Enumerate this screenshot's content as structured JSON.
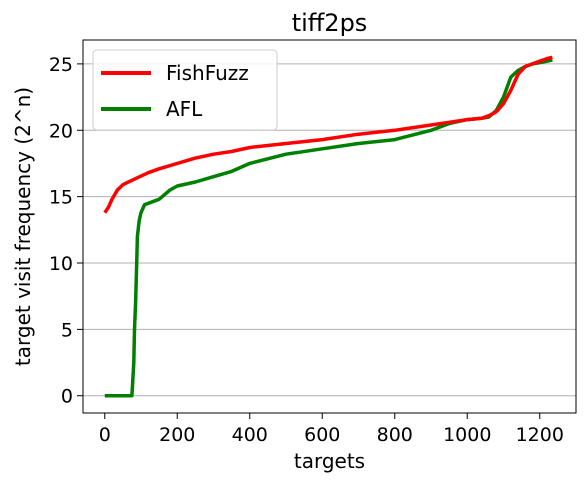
{
  "chart_data": {
    "type": "line",
    "title": "tiff2ps",
    "xlabel": "targets",
    "ylabel": "target visit frequency (2^n)",
    "xlim": [
      -60,
      1300
    ],
    "ylim": [
      -1.3,
      26.8
    ],
    "xticks": [
      0,
      200,
      400,
      600,
      800,
      1000,
      1200
    ],
    "yticks": [
      0,
      5,
      10,
      15,
      20,
      25
    ],
    "grid": "horizontal",
    "legend_position": "top-left",
    "series": [
      {
        "name": "FishFuzz",
        "color": "#ff0000",
        "x": [
          0,
          10,
          20,
          35,
          50,
          80,
          120,
          150,
          200,
          250,
          300,
          350,
          400,
          500,
          600,
          700,
          800,
          900,
          950,
          1000,
          1040,
          1060,
          1080,
          1100,
          1120,
          1140,
          1160,
          1180,
          1200,
          1220,
          1235
        ],
        "y": [
          13.8,
          14.2,
          14.8,
          15.5,
          15.9,
          16.3,
          16.8,
          17.1,
          17.5,
          17.9,
          18.2,
          18.4,
          18.7,
          19.0,
          19.3,
          19.7,
          20.0,
          20.4,
          20.6,
          20.8,
          20.9,
          21.1,
          21.4,
          22.0,
          23.0,
          24.2,
          24.8,
          25.0,
          25.2,
          25.4,
          25.5
        ]
      },
      {
        "name": "AFL",
        "color": "#008000",
        "x": [
          0,
          20,
          40,
          60,
          75,
          80,
          82,
          85,
          88,
          90,
          95,
          100,
          110,
          120,
          150,
          180,
          200,
          250,
          300,
          350,
          400,
          500,
          600,
          700,
          800,
          900,
          950,
          1000,
          1040,
          1060,
          1080,
          1100,
          1120,
          1140,
          1160,
          1180,
          1200,
          1220,
          1235
        ],
        "y": [
          0,
          0,
          0,
          0,
          0,
          2.5,
          5.0,
          7.0,
          10.0,
          12.0,
          13.2,
          13.8,
          14.4,
          14.5,
          14.8,
          15.5,
          15.8,
          16.1,
          16.5,
          16.9,
          17.5,
          18.2,
          18.6,
          19.0,
          19.3,
          20.0,
          20.5,
          20.8,
          20.9,
          21.0,
          21.5,
          22.5,
          24.0,
          24.5,
          24.8,
          25.0,
          25.1,
          25.2,
          25.3
        ]
      }
    ]
  }
}
